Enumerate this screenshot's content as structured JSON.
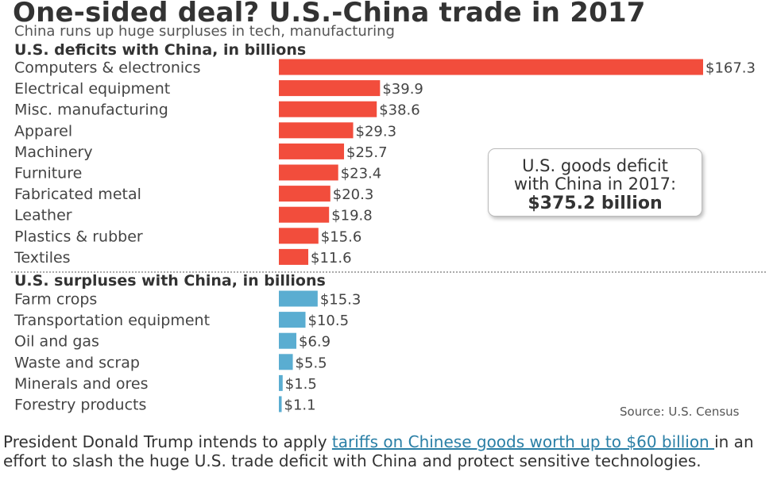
{
  "title": "One-sided deal? U.S.-China trade in 2017",
  "subtitle": "China runs up huge surpluses in tech, manufacturing",
  "colors": {
    "deficit": "#f24d3c",
    "surplus": "#5aadd1"
  },
  "chart_data": [
    {
      "type": "bar",
      "orientation": "horizontal",
      "title": "U.S. deficits with China, in billions",
      "categories": [
        "Computers & electronics",
        "Electrical equipment",
        "Misc. manufacturing",
        "Apparel",
        "Machinery",
        "Furniture",
        "Fabricated metal",
        "Leather",
        "Plastics & rubber",
        "Textiles"
      ],
      "values": [
        167.3,
        39.9,
        38.6,
        29.3,
        25.7,
        23.4,
        20.3,
        19.8,
        15.6,
        11.6
      ],
      "labels": [
        "$167.3",
        "$39.9",
        "$38.6",
        "$29.3",
        "$25.7",
        "$23.4",
        "$20.3",
        "$19.8",
        "$15.6",
        "$11.6"
      ],
      "color": "#f24d3c",
      "grid": false
    },
    {
      "type": "bar",
      "orientation": "horizontal",
      "title": "U.S. surpluses with China, in billions",
      "categories": [
        "Farm crops",
        "Transportation equipment",
        "Oil and gas",
        "Waste and scrap",
        "Minerals and ores",
        "Forestry products"
      ],
      "values": [
        15.3,
        10.5,
        6.9,
        5.5,
        1.5,
        1.1
      ],
      "labels": [
        "$15.3",
        "$10.5",
        "$6.9",
        "$5.5",
        "$1.5",
        "$1.1"
      ],
      "color": "#5aadd1",
      "grid": false
    }
  ],
  "callout": {
    "line1": "U.S. goods deficit",
    "line2": "with China in 2017:",
    "amount": "$375.2 billion"
  },
  "source": "Source: U.S. Census",
  "caption": {
    "before": "President Donald Trump intends to apply ",
    "link": "tariffs on Chinese goods worth up to $60 billion ",
    "after": "in an effort to slash the huge U.S. trade deficit with China and protect sensitive technologies."
  }
}
